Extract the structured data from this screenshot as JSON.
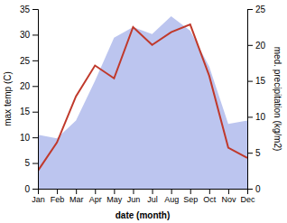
{
  "chart_data": {
    "type": "line",
    "categories": [
      "Jan",
      "Feb",
      "Mar",
      "Apr",
      "May",
      "Jun",
      "Jul",
      "Aug",
      "Sep",
      "Oct",
      "Nov",
      "Dec"
    ],
    "xlabel": "date (month)",
    "ylabel": "max temp (C)",
    "y2label": "med. precipitation (kg/m2)",
    "series": [
      {
        "type": "area",
        "axis": "y2",
        "color": "#bcc5ef",
        "values": [
          7.5,
          7.0,
          9.5,
          15.0,
          21.0,
          22.5,
          21.5,
          24.0,
          22.0,
          17.0,
          9.0,
          9.5
        ]
      },
      {
        "type": "line",
        "color": "#c0392b",
        "values": [
          3.5,
          9.0,
          18.0,
          24.0,
          21.5,
          31.5,
          28.0,
          30.5,
          32.0,
          22.0,
          8.0,
          6.0
        ]
      }
    ],
    "ylim": [
      0,
      35
    ],
    "yticks": [
      0,
      5,
      10,
      15,
      20,
      25,
      30,
      35
    ],
    "y2lim": [
      0,
      25
    ],
    "y2ticks": [
      0,
      5,
      10,
      15,
      20,
      25
    ],
    "grid": false
  }
}
